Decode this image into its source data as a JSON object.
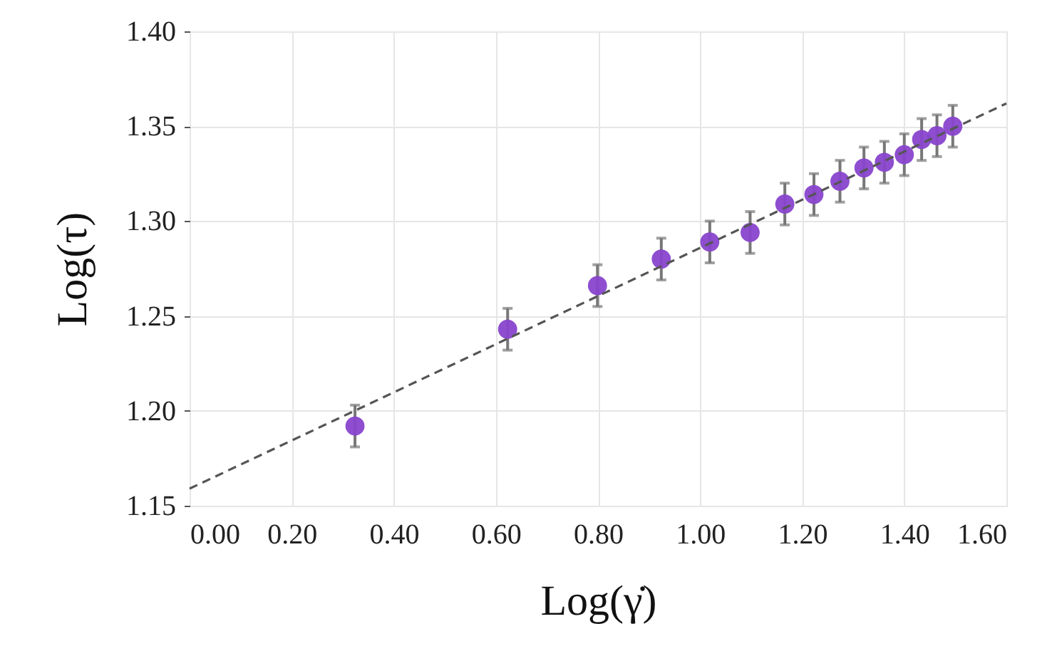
{
  "chart_data": {
    "type": "scatter",
    "xlabel": "Log(γ̇)",
    "ylabel": "Log(τ)",
    "xlim": [
      0.0,
      1.6
    ],
    "ylim": [
      1.15,
      1.4
    ],
    "xticks": [
      {
        "value": 0.0,
        "label": "0.00"
      },
      {
        "value": 0.2,
        "label": "0.20"
      },
      {
        "value": 0.4,
        "label": "0.40"
      },
      {
        "value": 0.6,
        "label": "0.60"
      },
      {
        "value": 0.8,
        "label": "0.80"
      },
      {
        "value": 1.0,
        "label": "1.00"
      },
      {
        "value": 1.2,
        "label": "1.20"
      },
      {
        "value": 1.4,
        "label": "1.40"
      },
      {
        "value": 1.6,
        "label": "1.60"
      }
    ],
    "yticks": [
      {
        "value": 1.15,
        "label": "1.15"
      },
      {
        "value": 1.2,
        "label": "1.20"
      },
      {
        "value": 1.25,
        "label": "1.25"
      },
      {
        "value": 1.3,
        "label": "1.30"
      },
      {
        "value": 1.35,
        "label": "1.35"
      },
      {
        "value": 1.4,
        "label": "1.40"
      }
    ],
    "grid": true,
    "series": [
      {
        "color": "#8844cc",
        "marker": "circle",
        "x": [
          0.324,
          0.623,
          0.799,
          0.924,
          1.019,
          1.098,
          1.166,
          1.223,
          1.274,
          1.321,
          1.361,
          1.4,
          1.434,
          1.464,
          1.495
        ],
        "values": [
          1.192,
          1.243,
          1.266,
          1.28,
          1.289,
          1.294,
          1.309,
          1.314,
          1.321,
          1.328,
          1.331,
          1.335,
          1.343,
          1.345,
          1.35
        ],
        "errors": [
          0.011,
          0.011,
          0.011,
          0.011,
          0.011,
          0.011,
          0.011,
          0.011,
          0.011,
          0.011,
          0.011,
          0.011,
          0.011,
          0.011,
          0.011
        ]
      },
      {
        "type": "line",
        "color": "#555555",
        "line_style": "dashed",
        "marker": "none",
        "x": [
          0.0,
          1.6
        ],
        "values": [
          1.159,
          1.362
        ]
      }
    ]
  }
}
